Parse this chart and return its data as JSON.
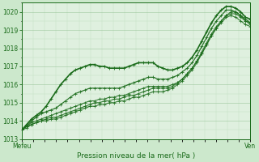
{
  "xlabel": "Pression niveau de la mer( hPa )",
  "xlabels": [
    "Mefeu",
    "Ven"
  ],
  "ylim": [
    1013.0,
    1020.5
  ],
  "yticks": [
    1013,
    1014,
    1015,
    1016,
    1017,
    1018,
    1019,
    1020
  ],
  "bg_color": "#cce8cc",
  "plot_bg_color": "#dff0df",
  "grid_color_major": "#aacfaa",
  "grid_color_minor": "#c0dfc0",
  "line_color": "#1a6b1a",
  "marker": "+",
  "series": [
    [
      1013.5,
      1013.8,
      1014.1,
      1014.3,
      1014.5,
      1014.8,
      1015.2,
      1015.6,
      1016.0,
      1016.3,
      1016.6,
      1016.8,
      1016.9,
      1017.0,
      1017.1,
      1017.1,
      1017.0,
      1017.0,
      1016.9,
      1016.9,
      1016.9,
      1016.9,
      1017.0,
      1017.1,
      1017.2,
      1017.2,
      1017.2,
      1017.2,
      1017.0,
      1016.9,
      1016.8,
      1016.8,
      1016.9,
      1017.0,
      1017.2,
      1017.5,
      1017.9,
      1018.4,
      1018.9,
      1019.4,
      1019.8,
      1020.1,
      1020.3,
      1020.3,
      1020.2,
      1020.0,
      1019.7,
      1019.6
    ],
    [
      1013.5,
      1013.7,
      1014.0,
      1014.2,
      1014.4,
      1014.5,
      1014.6,
      1014.7,
      1014.9,
      1015.1,
      1015.3,
      1015.5,
      1015.6,
      1015.7,
      1015.8,
      1015.8,
      1015.8,
      1015.8,
      1015.8,
      1015.8,
      1015.8,
      1015.9,
      1016.0,
      1016.1,
      1016.2,
      1016.3,
      1016.4,
      1016.4,
      1016.3,
      1016.3,
      1016.3,
      1016.4,
      1016.5,
      1016.7,
      1016.9,
      1017.2,
      1017.6,
      1018.1,
      1018.6,
      1019.1,
      1019.5,
      1019.8,
      1020.1,
      1020.1,
      1020.0,
      1019.8,
      1019.6,
      1019.4
    ],
    [
      1013.5,
      1013.7,
      1013.9,
      1014.0,
      1014.1,
      1014.2,
      1014.3,
      1014.4,
      1014.5,
      1014.6,
      1014.7,
      1014.8,
      1014.9,
      1015.0,
      1015.1,
      1015.1,
      1015.2,
      1015.2,
      1015.3,
      1015.3,
      1015.4,
      1015.4,
      1015.5,
      1015.6,
      1015.7,
      1015.8,
      1015.9,
      1015.9,
      1015.9,
      1015.9,
      1015.9,
      1016.0,
      1016.1,
      1016.3,
      1016.6,
      1016.9,
      1017.3,
      1017.7,
      1018.2,
      1018.7,
      1019.1,
      1019.4,
      1019.7,
      1019.8,
      1019.7,
      1019.5,
      1019.3,
      1019.2
    ],
    [
      1013.5,
      1013.7,
      1013.8,
      1013.9,
      1014.0,
      1014.1,
      1014.2,
      1014.2,
      1014.3,
      1014.4,
      1014.5,
      1014.6,
      1014.7,
      1014.8,
      1014.9,
      1015.0,
      1015.0,
      1015.1,
      1015.1,
      1015.2,
      1015.2,
      1015.3,
      1015.4,
      1015.4,
      1015.5,
      1015.6,
      1015.7,
      1015.8,
      1015.8,
      1015.8,
      1015.8,
      1015.9,
      1016.1,
      1016.3,
      1016.6,
      1016.9,
      1017.3,
      1017.8,
      1018.3,
      1018.8,
      1019.2,
      1019.5,
      1019.8,
      1019.9,
      1019.9,
      1019.7,
      1019.5,
      1019.3
    ],
    [
      1013.5,
      1013.6,
      1013.8,
      1013.9,
      1014.0,
      1014.0,
      1014.1,
      1014.1,
      1014.2,
      1014.3,
      1014.4,
      1014.5,
      1014.6,
      1014.7,
      1014.8,
      1014.8,
      1014.9,
      1014.9,
      1015.0,
      1015.0,
      1015.1,
      1015.1,
      1015.2,
      1015.3,
      1015.3,
      1015.4,
      1015.5,
      1015.6,
      1015.6,
      1015.6,
      1015.7,
      1015.8,
      1016.0,
      1016.2,
      1016.5,
      1016.8,
      1017.2,
      1017.7,
      1018.2,
      1018.7,
      1019.1,
      1019.5,
      1019.8,
      1020.0,
      1020.0,
      1019.8,
      1019.5,
      1019.4
    ]
  ],
  "line_widths": [
    1.2,
    0.9,
    0.8,
    0.8,
    0.8
  ],
  "line_alphas": [
    1.0,
    0.9,
    0.85,
    0.85,
    0.85
  ]
}
